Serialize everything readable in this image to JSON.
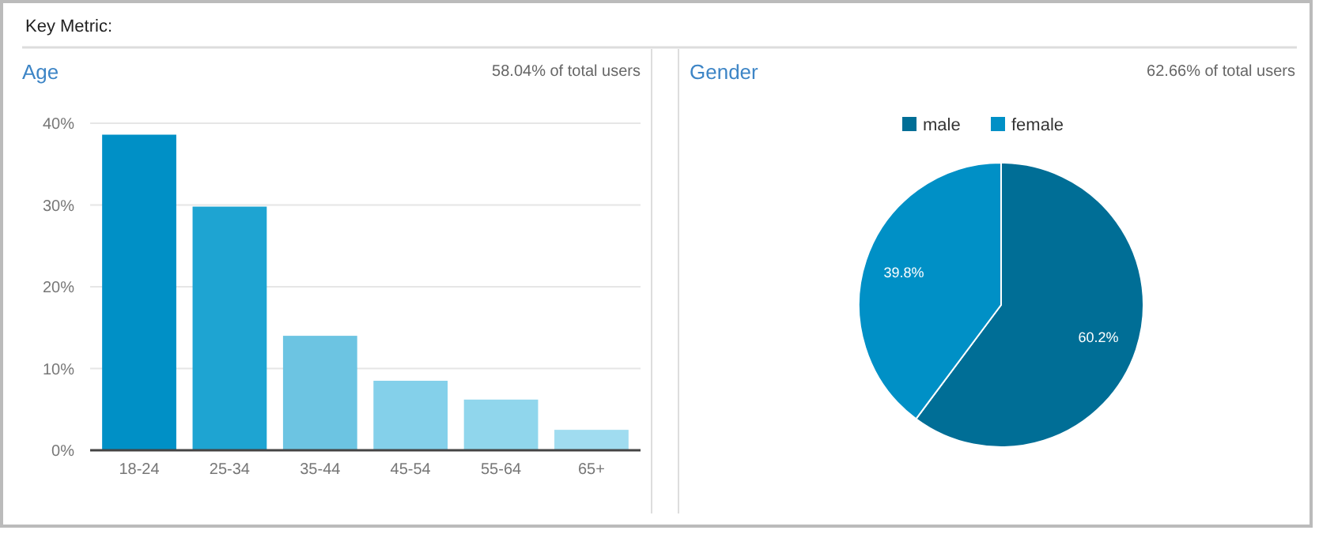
{
  "chart_data": [
    {
      "type": "bar",
      "title": "Age",
      "subtitle": "58.04% of total users",
      "annotations": [
        "Key Metric:"
      ],
      "categories": [
        "18-24",
        "25-34",
        "35-44",
        "45-54",
        "55-64",
        "65+"
      ],
      "values": [
        38.6,
        29.8,
        14.0,
        8.5,
        6.2,
        2.5
      ],
      "colors": [
        "#0090c6",
        "#1ea4d2",
        "#6cc4e2",
        "#84d0ea",
        "#90d6ec",
        "#a0dcf0"
      ],
      "ylim": [
        0,
        40
      ],
      "yticks": [
        {
          "value": 0,
          "label": "0%"
        },
        {
          "value": 10,
          "label": "10%"
        },
        {
          "value": 20,
          "label": "20%"
        },
        {
          "value": 30,
          "label": "30%"
        },
        {
          "value": 40,
          "label": "40%"
        }
      ],
      "grid": "y"
    },
    {
      "type": "pie",
      "title": "Gender",
      "subtitle": "62.66% of total users",
      "categories": [
        "male",
        "female"
      ],
      "values": [
        60.2,
        39.8
      ],
      "colors": [
        "#006e96",
        "#0090c6"
      ],
      "value_labels": [
        "60.2%",
        "39.8%"
      ],
      "legend": "top"
    }
  ]
}
